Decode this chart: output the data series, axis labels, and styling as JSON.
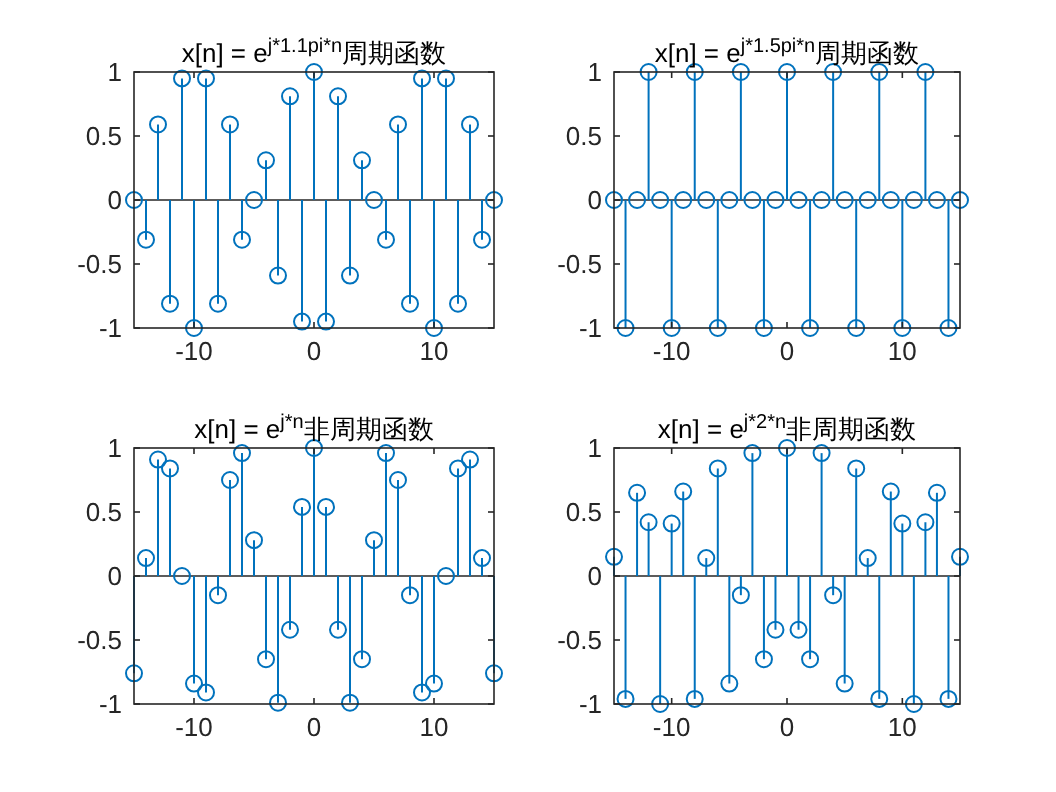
{
  "chart_data": [
    {
      "type": "lollipop",
      "title": "x[n] = e$^{j*1.1pi*n}$周期函数",
      "color": "#0072bd",
      "marker": "circle",
      "x": [
        -15,
        -14,
        -13,
        -12,
        -11,
        -10,
        -9,
        -8,
        -7,
        -6,
        -5,
        -4,
        -3,
        -2,
        -1,
        0,
        1,
        2,
        3,
        4,
        5,
        6,
        7,
        8,
        9,
        10,
        11,
        12,
        13,
        14,
        15
      ],
      "values": [
        0,
        -0.31,
        0.59,
        -0.81,
        0.95,
        -1,
        0.95,
        -0.81,
        0.59,
        -0.31,
        0,
        0.31,
        -0.59,
        0.81,
        -0.95,
        1,
        -0.95,
        0.81,
        -0.59,
        0.31,
        0,
        -0.31,
        0.59,
        -0.81,
        0.95,
        -1,
        0.95,
        -0.81,
        0.59,
        -0.31,
        0
      ],
      "xlim": [
        -15,
        15
      ],
      "xticks": [
        -10,
        0,
        10
      ],
      "ylim": [
        -1,
        1
      ],
      "yticks": [
        -1,
        -0.5,
        0,
        0.5,
        1
      ],
      "ref_lines": [
        {
          "axis": "y",
          "value": 0,
          "color": "#262626"
        }
      ]
    },
    {
      "type": "lollipop",
      "title": "x[n] = e$^{j*1.5pi*n}$周期函数",
      "color": "#0072bd",
      "marker": "circle",
      "x": [
        -15,
        -14,
        -13,
        -12,
        -11,
        -10,
        -9,
        -8,
        -7,
        -6,
        -5,
        -4,
        -3,
        -2,
        -1,
        0,
        1,
        2,
        3,
        4,
        5,
        6,
        7,
        8,
        9,
        10,
        11,
        12,
        13,
        14,
        15
      ],
      "values": [
        0,
        -1,
        0,
        1,
        0,
        -1,
        0,
        1,
        0,
        -1,
        0,
        1,
        0,
        -1,
        0,
        1,
        0,
        -1,
        0,
        1,
        0,
        -1,
        0,
        1,
        0,
        -1,
        0,
        1,
        0,
        -1,
        0
      ],
      "xlim": [
        -15,
        15
      ],
      "xticks": [
        -10,
        0,
        10
      ],
      "ylim": [
        -1,
        1
      ],
      "yticks": [
        -1,
        -0.5,
        0,
        0.5,
        1
      ],
      "ref_lines": [
        {
          "axis": "y",
          "value": 0,
          "color": "#262626"
        }
      ]
    },
    {
      "type": "lollipop",
      "title": "x[n] = e$^{j*n}$非周期函数",
      "color": "#0072bd",
      "marker": "circle",
      "x": [
        -15,
        -14,
        -13,
        -12,
        -11,
        -10,
        -9,
        -8,
        -7,
        -6,
        -5,
        -4,
        -3,
        -2,
        -1,
        0,
        1,
        2,
        3,
        4,
        5,
        6,
        7,
        8,
        9,
        10,
        11,
        12,
        13,
        14,
        15
      ],
      "values": [
        -0.76,
        0.14,
        0.91,
        0.84,
        0,
        -0.84,
        -0.91,
        -0.15,
        0.75,
        0.96,
        0.28,
        -0.65,
        -0.99,
        -0.42,
        0.54,
        1,
        0.54,
        -0.42,
        -0.99,
        -0.65,
        0.28,
        0.96,
        0.75,
        -0.15,
        -0.91,
        -0.84,
        0,
        0.84,
        0.91,
        0.14,
        -0.76
      ],
      "xlim": [
        -15,
        15
      ],
      "xticks": [
        -10,
        0,
        10
      ],
      "ylim": [
        -1,
        1
      ],
      "yticks": [
        -1,
        -0.5,
        0,
        0.5,
        1
      ],
      "ref_lines": [
        {
          "axis": "y",
          "value": 0,
          "color": "#262626"
        }
      ]
    },
    {
      "type": "lollipop",
      "title": "x[n] = e$^{j*2*n}$非周期函数",
      "color": "#0072bd",
      "marker": "circle",
      "x": [
        -15,
        -14,
        -13,
        -12,
        -11,
        -10,
        -9,
        -8,
        -7,
        -6,
        -5,
        -4,
        -3,
        -2,
        -1,
        0,
        1,
        2,
        3,
        4,
        5,
        6,
        7,
        8,
        9,
        10,
        11,
        12,
        13,
        14,
        15
      ],
      "values": [
        0.15,
        -0.96,
        0.65,
        0.42,
        -1,
        0.41,
        0.66,
        -0.96,
        0.14,
        0.84,
        -0.84,
        -0.15,
        0.96,
        -0.65,
        -0.42,
        1,
        -0.42,
        -0.65,
        0.96,
        -0.15,
        -0.84,
        0.84,
        0.14,
        -0.96,
        0.66,
        0.41,
        -1,
        0.42,
        0.65,
        -0.96,
        0.15
      ],
      "xlim": [
        -15,
        15
      ],
      "xticks": [
        -10,
        0,
        10
      ],
      "ylim": [
        -1,
        1
      ],
      "yticks": [
        -1,
        -0.5,
        0,
        0.5,
        1
      ],
      "ref_lines": [
        {
          "axis": "y",
          "value": 0,
          "color": "#262626"
        }
      ]
    }
  ]
}
